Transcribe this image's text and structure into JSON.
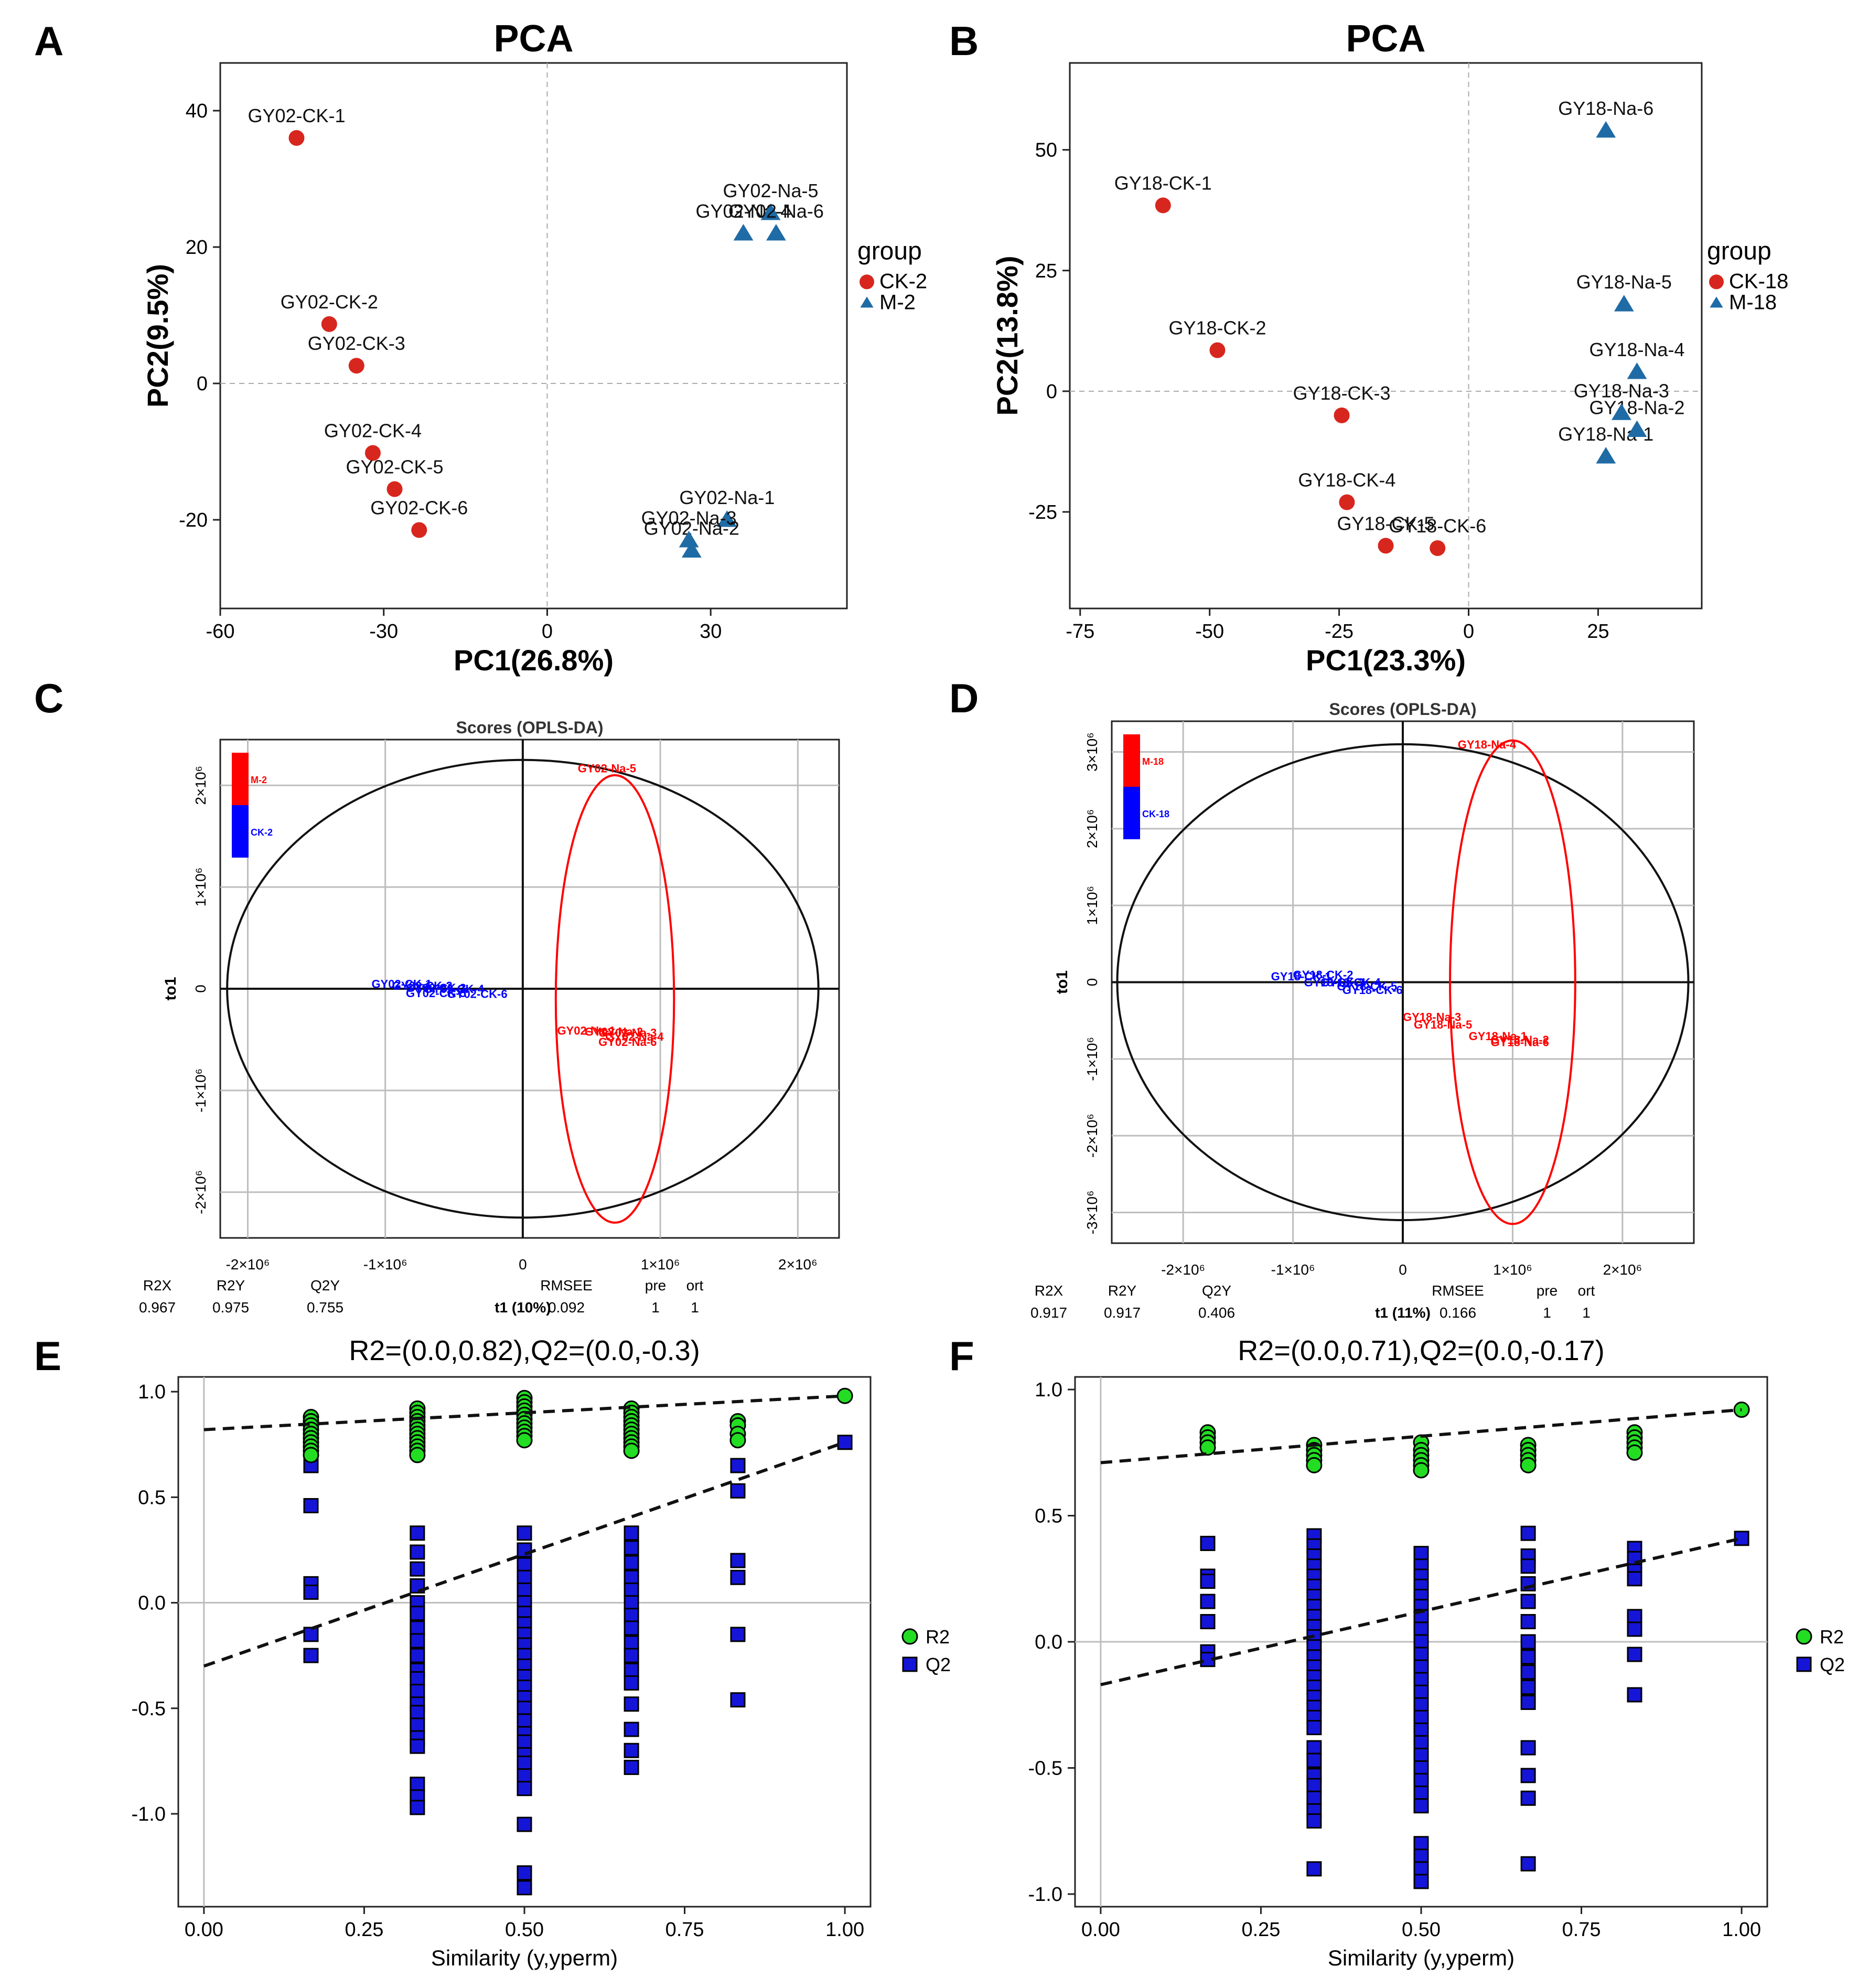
{
  "panel_letters": [
    "A",
    "B",
    "C",
    "D",
    "E",
    "F"
  ],
  "colors": {
    "red": "#D7261E",
    "blue": "#1F6BA5",
    "pure_red": "#FF0000",
    "pure_blue": "#0000FF",
    "green": "#22DD22",
    "qblue": "#1515D8",
    "grid": "#BDBDBD"
  },
  "chart_data": [
    {
      "id": "A",
      "type": "scatter",
      "title": "PCA",
      "xlabel": "PC1(26.8%)",
      "ylabel": "PC2(9.5%)",
      "xlim": [
        -60,
        55
      ],
      "ylim": [
        -33,
        47
      ],
      "xticks": [
        -60,
        -30,
        0,
        30
      ],
      "yticks": [
        -20,
        0,
        20,
        40
      ],
      "legend": {
        "title": "group",
        "items": [
          {
            "label": "CK-2",
            "shape": "circle"
          },
          {
            "label": "M-2",
            "shape": "triangle"
          }
        ]
      },
      "series": [
        {
          "name": "CK-2",
          "shape": "circle",
          "points": [
            {
              "x": -46,
              "y": 36,
              "label": "GY02-CK-1"
            },
            {
              "x": -40,
              "y": 8.7,
              "label": "GY02-CK-2"
            },
            {
              "x": -35,
              "y": 2.6,
              "label": "GY02-CK-3"
            },
            {
              "x": -32,
              "y": -10.2,
              "label": "GY02-CK-4"
            },
            {
              "x": -28,
              "y": -15.5,
              "label": "GY02-CK-5"
            },
            {
              "x": -23.5,
              "y": -21.5,
              "label": "GY02-CK-6"
            }
          ]
        },
        {
          "name": "M-2",
          "shape": "triangle",
          "points": [
            {
              "x": 33,
              "y": -20,
              "label": "GY02-Na-1"
            },
            {
              "x": 26.5,
              "y": -24.5,
              "label": "GY02-Na-2"
            },
            {
              "x": 26,
              "y": -23,
              "label": "GY02-Na-3"
            },
            {
              "x": 36,
              "y": 22,
              "label": "GY02-Na-4"
            },
            {
              "x": 41,
              "y": 25,
              "label": "GY02-Na-5"
            },
            {
              "x": 42,
              "y": 22,
              "label": "GY02-Na-6"
            }
          ]
        }
      ]
    },
    {
      "id": "B",
      "type": "scatter",
      "title": "PCA",
      "xlabel": "PC1(23.3%)",
      "ylabel": "PC2(13.8%)",
      "xlim": [
        -77,
        45
      ],
      "ylim": [
        -45,
        68
      ],
      "xticks": [
        -75,
        -50,
        -25,
        0,
        25
      ],
      "yticks": [
        -25,
        0,
        25,
        50
      ],
      "legend": {
        "title": "group",
        "items": [
          {
            "label": "CK-18",
            "shape": "circle"
          },
          {
            "label": "M-18",
            "shape": "triangle"
          }
        ]
      },
      "series": [
        {
          "name": "CK-18",
          "shape": "circle",
          "points": [
            {
              "x": -59,
              "y": 38.5,
              "label": "GY18-CK-1"
            },
            {
              "x": -48.5,
              "y": 8.5,
              "label": "GY18-CK-2"
            },
            {
              "x": -24.5,
              "y": -5,
              "label": "GY18-CK-3"
            },
            {
              "x": -23.5,
              "y": -23,
              "label": "GY18-CK-4"
            },
            {
              "x": -16,
              "y": -32,
              "label": "GY18-CK-5"
            },
            {
              "x": -6,
              "y": -32.5,
              "label": "GY18-CK-6"
            }
          ]
        },
        {
          "name": "M-18",
          "shape": "triangle",
          "points": [
            {
              "x": 26.5,
              "y": -13.5,
              "label": "GY18-Na-1"
            },
            {
              "x": 32.5,
              "y": -8,
              "label": "GY18-Na-2"
            },
            {
              "x": 29.5,
              "y": -4.5,
              "label": "GY18-Na-3"
            },
            {
              "x": 32.5,
              "y": 4,
              "label": "GY18-Na-4"
            },
            {
              "x": 30,
              "y": 18,
              "label": "GY18-Na-5"
            },
            {
              "x": 26.5,
              "y": 54,
              "label": "GY18-Na-6"
            }
          ]
        }
      ]
    },
    {
      "id": "C",
      "type": "scatter",
      "title": "Scores (OPLS-DA)",
      "xlabel": "t1 (10%)",
      "ylabel": "to1",
      "xlim": [
        -2.2,
        2.3
      ],
      "ylim": [
        -2.45,
        2.45
      ],
      "xticks": [
        {
          "v": -2,
          "label": "-2×10⁶"
        },
        {
          "v": -1,
          "label": "-1×10⁶"
        },
        {
          "v": 0,
          "label": "0"
        },
        {
          "v": 1,
          "label": "1×10⁶"
        },
        {
          "v": 2,
          "label": "2×10⁶"
        }
      ],
      "yticks": [
        {
          "v": -2,
          "label": "-2×10⁶"
        },
        {
          "v": -1,
          "label": "-1×10⁶"
        },
        {
          "v": 0,
          "label": "0"
        },
        {
          "v": 1,
          "label": "1×10⁶"
        },
        {
          "v": 2,
          "label": "2×10⁶"
        }
      ],
      "hotelling": {
        "cx": 0,
        "cy": 0,
        "rx": 2.15,
        "ry": 2.25
      },
      "group_ellipse": {
        "cx": 0.67,
        "cy": -0.1,
        "rx": 0.43,
        "ry": 2.2
      },
      "legend": [
        {
          "label": "M-2",
          "color": "pure_red"
        },
        {
          "label": "CK-2",
          "color": "pure_blue"
        }
      ],
      "series": [
        {
          "name": "CK-2",
          "color": "pure_blue",
          "points": [
            {
              "x": -1.1,
              "y": 0.05,
              "label": "GY02-CK-1"
            },
            {
              "x": -0.95,
              "y": 0.03,
              "label": "GY02-CK-2"
            },
            {
              "x": -0.85,
              "y": 0.01,
              "label": "GY02-CK-3"
            },
            {
              "x": -0.72,
              "y": 0.0,
              "label": "GY02-CK-4"
            },
            {
              "x": -0.85,
              "y": -0.04,
              "label": "GY02-CK-5"
            },
            {
              "x": -0.55,
              "y": -0.05,
              "label": "GY02-CK-6"
            }
          ]
        },
        {
          "name": "M-2",
          "color": "pure_red",
          "points": [
            {
              "x": 0.25,
              "y": -0.41,
              "label": "GY02-Na-1"
            },
            {
              "x": 0.45,
              "y": -0.42,
              "label": "GY02-Na-2"
            },
            {
              "x": 0.55,
              "y": -0.43,
              "label": "GY02-Na-3"
            },
            {
              "x": 0.6,
              "y": -0.47,
              "label": "GY02-Na-4"
            },
            {
              "x": 0.4,
              "y": 2.17,
              "label": "GY02-Na-5"
            },
            {
              "x": 0.55,
              "y": -0.52,
              "label": "GY02-Na-6"
            }
          ]
        }
      ],
      "stats": [
        {
          "k": "R2X",
          "v": "0.967"
        },
        {
          "k": "R2Y",
          "v": "0.975"
        },
        {
          "k": "Q2Y",
          "v": "0.755"
        },
        {
          "k": "RMSEE",
          "v": "0.092"
        },
        {
          "k": "pre",
          "v": "1"
        },
        {
          "k": "ort",
          "v": "1"
        }
      ]
    },
    {
      "id": "D",
      "type": "scatter",
      "title": "Scores (OPLS-DA)",
      "xlabel": "t1 (11%)",
      "ylabel": "to1",
      "xlim": [
        -2.65,
        2.65
      ],
      "ylim": [
        -3.4,
        3.4
      ],
      "xticks": [
        {
          "v": -2,
          "label": "-2×10⁶"
        },
        {
          "v": -1,
          "label": "-1×10⁶"
        },
        {
          "v": 0,
          "label": "0"
        },
        {
          "v": 1,
          "label": "1×10⁶"
        },
        {
          "v": 2,
          "label": "2×10⁶"
        }
      ],
      "yticks": [
        {
          "v": -3,
          "label": "-3×10⁶"
        },
        {
          "v": -2,
          "label": "-2×10⁶"
        },
        {
          "v": -1,
          "label": "-1×10⁶"
        },
        {
          "v": 0,
          "label": "0"
        },
        {
          "v": 1,
          "label": "1×10⁶"
        },
        {
          "v": 2,
          "label": "2×10⁶"
        },
        {
          "v": 3,
          "label": "3×10⁶"
        }
      ],
      "hotelling": {
        "cx": 0,
        "cy": 0,
        "rx": 2.6,
        "ry": 3.1
      },
      "group_ellipse": {
        "cx": 1.0,
        "cy": 0.0,
        "rx": 0.57,
        "ry": 3.15
      },
      "legend": [
        {
          "label": "M-18",
          "color": "pure_red"
        },
        {
          "label": "CK-18",
          "color": "pure_blue"
        }
      ],
      "series": [
        {
          "name": "CK-18",
          "color": "pure_blue",
          "points": [
            {
              "x": -1.2,
              "y": 0.08,
              "label": "GY18-CK-1"
            },
            {
              "x": -1.0,
              "y": 0.1,
              "label": "GY18-CK-2"
            },
            {
              "x": -0.9,
              "y": 0.0,
              "label": "GY18-CK-3"
            },
            {
              "x": -0.75,
              "y": 0.0,
              "label": "GY18-CK-4"
            },
            {
              "x": -0.6,
              "y": -0.05,
              "label": "GY18-CK-5"
            },
            {
              "x": -0.55,
              "y": -0.1,
              "label": "GY18-CK-6"
            }
          ]
        },
        {
          "name": "M-18",
          "color": "pure_red",
          "points": [
            {
              "x": 0.6,
              "y": -0.7,
              "label": "GY18-Na-1"
            },
            {
              "x": 0.8,
              "y": -0.75,
              "label": "GY18-Na-2"
            },
            {
              "x": 0.0,
              "y": -0.45,
              "label": "GY18-Na-3"
            },
            {
              "x": 0.5,
              "y": 3.1,
              "label": "GY18-Na-4"
            },
            {
              "x": 0.1,
              "y": -0.55,
              "label": "GY18-Na-5"
            },
            {
              "x": 0.8,
              "y": -0.78,
              "label": "GY18-Na-6"
            }
          ]
        }
      ],
      "stats": [
        {
          "k": "R2X",
          "v": "0.917"
        },
        {
          "k": "R2Y",
          "v": "0.917"
        },
        {
          "k": "Q2Y",
          "v": "0.406"
        },
        {
          "k": "RMSEE",
          "v": "0.166"
        },
        {
          "k": "pre",
          "v": "1"
        },
        {
          "k": "ort",
          "v": "1"
        }
      ]
    },
    {
      "id": "E",
      "type": "scatter",
      "title": "R2=(0.0,0.82),Q2=(0.0,-0.3)",
      "xlabel": "Similarity (y,yperm)",
      "ylabel": "",
      "xlim": [
        -0.04,
        1.04
      ],
      "ylim": [
        -1.44,
        1.07
      ],
      "xticks": [
        0,
        0.25,
        0.5,
        0.75,
        1
      ],
      "yticks": [
        -1,
        -0.5,
        0,
        0.5,
        1
      ],
      "xtick_labels": [
        "0.00",
        "0.25",
        "0.50",
        "0.75",
        "1.00"
      ],
      "ytick_labels": [
        "-1.0",
        "-0.5",
        "0.0",
        "0.5",
        "1.0"
      ],
      "legend": [
        {
          "label": "R2",
          "shape": "circle"
        },
        {
          "label": "Q2",
          "shape": "square"
        }
      ],
      "r2_line": [
        [
          0,
          0.82
        ],
        [
          1,
          0.98
        ]
      ],
      "q2_line": [
        [
          0,
          -0.3
        ],
        [
          1,
          0.76
        ]
      ],
      "r2_points": {
        "0.167": [
          0.88,
          0.86,
          0.84,
          0.82,
          0.8,
          0.78,
          0.76,
          0.74,
          0.72,
          0.7
        ],
        "0.333": [
          0.92,
          0.9,
          0.88,
          0.86,
          0.84,
          0.82,
          0.8,
          0.78,
          0.76,
          0.74,
          0.72,
          0.7
        ],
        "0.5": [
          0.97,
          0.95,
          0.93,
          0.91,
          0.89,
          0.87,
          0.85,
          0.83,
          0.81,
          0.79,
          0.77
        ],
        "0.667": [
          0.92,
          0.9,
          0.88,
          0.86,
          0.84,
          0.82,
          0.8,
          0.78,
          0.76,
          0.74,
          0.72
        ],
        "0.833": [
          0.86,
          0.84,
          0.8,
          0.77
        ],
        "1": [
          0.98
        ]
      },
      "q2_points": {
        "0.167": [
          0.72,
          0.65,
          0.46,
          0.09,
          0.05,
          -0.15,
          -0.25
        ],
        "0.333": [
          0.33,
          0.24,
          0.16,
          0.08,
          0.0,
          -0.05,
          -0.12,
          -0.18,
          -0.25,
          -0.32,
          -0.36,
          -0.42,
          -0.48,
          -0.52,
          -0.58,
          -0.64,
          -0.68,
          -0.86,
          -0.92,
          -0.97
        ],
        "0.5": [
          0.33,
          0.25,
          0.18,
          0.12,
          0.06,
          0.0,
          -0.05,
          -0.1,
          -0.15,
          -0.2,
          -0.25,
          -0.3,
          -0.35,
          -0.4,
          -0.45,
          -0.5,
          -0.56,
          -0.62,
          -0.66,
          -0.72,
          -0.76,
          -0.82,
          -0.88,
          -1.05,
          -1.28,
          -1.35
        ],
        "0.667": [
          0.33,
          0.26,
          0.19,
          0.12,
          0.06,
          0.0,
          -0.06,
          -0.12,
          -0.19,
          -0.25,
          -0.32,
          -0.38,
          -0.48,
          -0.6,
          -0.7,
          -0.78
        ],
        "0.833": [
          0.65,
          0.53,
          0.2,
          0.12,
          -0.15,
          -0.46
        ],
        "1": [
          0.76
        ]
      }
    },
    {
      "id": "F",
      "type": "scatter",
      "title": "R2=(0.0,0.71),Q2=(0.0,-0.17)",
      "xlabel": "Similarity (y,yperm)",
      "ylabel": "",
      "xlim": [
        -0.04,
        1.04
      ],
      "ylim": [
        -1.05,
        1.05
      ],
      "xticks": [
        0,
        0.25,
        0.5,
        0.75,
        1
      ],
      "yticks": [
        -1,
        -0.5,
        0,
        0.5,
        1
      ],
      "xtick_labels": [
        "0.00",
        "0.25",
        "0.50",
        "0.75",
        "1.00"
      ],
      "ytick_labels": [
        "-1.0",
        "-0.5",
        "0.0",
        "0.5",
        "1.0"
      ],
      "legend": [
        {
          "label": "R2",
          "shape": "circle"
        },
        {
          "label": "Q2",
          "shape": "square"
        }
      ],
      "r2_line": [
        [
          0,
          0.71
        ],
        [
          1,
          0.92
        ]
      ],
      "q2_line": [
        [
          0,
          -0.17
        ],
        [
          1,
          0.41
        ]
      ],
      "r2_points": {
        "0.167": [
          0.83,
          0.81,
          0.79,
          0.77
        ],
        "0.333": [
          0.78,
          0.76,
          0.74,
          0.72,
          0.7
        ],
        "0.5": [
          0.79,
          0.76,
          0.74,
          0.72,
          0.7,
          0.68
        ],
        "0.667": [
          0.78,
          0.76,
          0.74,
          0.72,
          0.7
        ],
        "0.833": [
          0.83,
          0.81,
          0.79,
          0.77,
          0.75
        ],
        "1": [
          0.92
        ]
      },
      "q2_points": {
        "0.167": [
          0.39,
          0.26,
          0.24,
          0.16,
          0.08,
          -0.04,
          -0.07
        ],
        "0.333": [
          0.42,
          0.38,
          0.34,
          0.3,
          0.26,
          0.22,
          0.18,
          0.14,
          0.1,
          0.06,
          0.02,
          -0.02,
          -0.06,
          -0.1,
          -0.14,
          -0.18,
          -0.22,
          -0.26,
          -0.3,
          -0.34,
          -0.42,
          -0.47,
          -0.53,
          -0.57,
          -0.62,
          -0.67,
          -0.71,
          -0.9
        ],
        "0.5": [
          0.35,
          0.3,
          0.26,
          0.22,
          0.18,
          0.14,
          0.1,
          0.05,
          0.0,
          -0.05,
          -0.1,
          -0.15,
          -0.2,
          -0.25,
          -0.3,
          -0.35,
          -0.4,
          -0.45,
          -0.5,
          -0.55,
          -0.6,
          -0.65,
          -0.8,
          -0.85,
          -0.9,
          -0.95
        ],
        "0.667": [
          0.43,
          0.34,
          0.3,
          0.23,
          0.16,
          0.08,
          0.0,
          -0.06,
          -0.12,
          -0.18,
          -0.24,
          -0.42,
          -0.53,
          -0.62,
          -0.88
        ],
        "0.833": [
          0.37,
          0.33,
          0.28,
          0.25,
          0.1,
          0.05,
          -0.05,
          -0.21
        ],
        "1": [
          0.41
        ]
      }
    }
  ]
}
